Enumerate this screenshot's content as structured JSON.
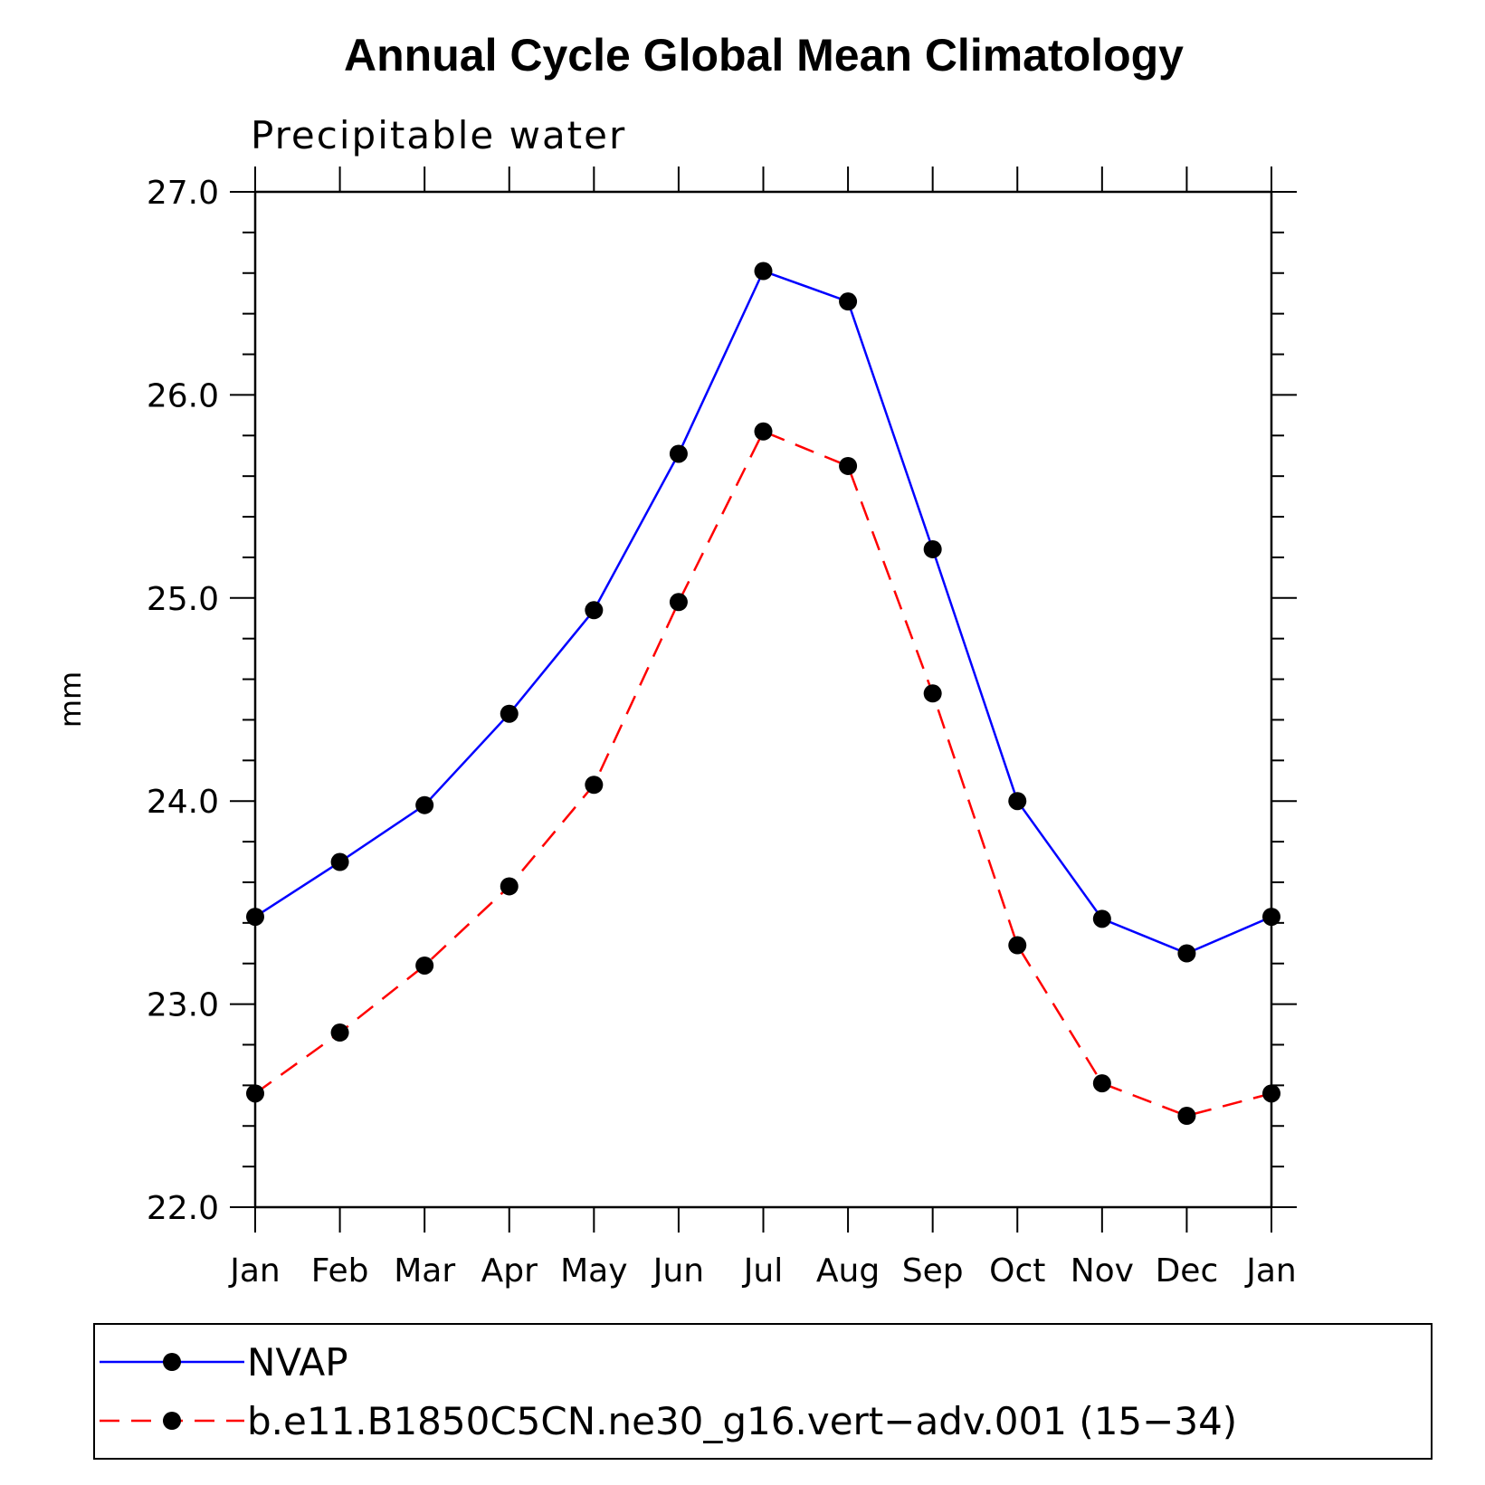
{
  "chart_data": {
    "type": "line",
    "title": "Annual Cycle Global Mean Climatology",
    "subtitle": "Precipitable water",
    "xlabel": "",
    "ylabel": "mm",
    "categories": [
      "Jan",
      "Feb",
      "Mar",
      "Apr",
      "May",
      "Jun",
      "Jul",
      "Aug",
      "Sep",
      "Oct",
      "Nov",
      "Dec",
      "Jan"
    ],
    "ylim": [
      22.0,
      27.0
    ],
    "yticks": [
      "22.0",
      "23.0",
      "24.0",
      "25.0",
      "26.0",
      "27.0"
    ],
    "grid": false,
    "legend_position": "bottom",
    "series": [
      {
        "name": "NVAP",
        "color": "#0000ff",
        "dash": "solid",
        "marker": "filled-circle",
        "values": [
          23.43,
          23.7,
          23.98,
          24.43,
          24.94,
          25.71,
          26.61,
          26.46,
          25.24,
          24.0,
          23.42,
          23.25,
          23.43
        ]
      },
      {
        "name": "b.e11.B1850C5CN.ne30_g16.vert−adv.001 (15−34)",
        "color": "#ff0000",
        "dash": "dashed",
        "marker": "filled-circle",
        "values": [
          22.56,
          22.86,
          23.19,
          23.58,
          24.08,
          24.98,
          25.82,
          25.65,
          24.53,
          23.29,
          22.61,
          22.45,
          22.56
        ]
      }
    ]
  }
}
